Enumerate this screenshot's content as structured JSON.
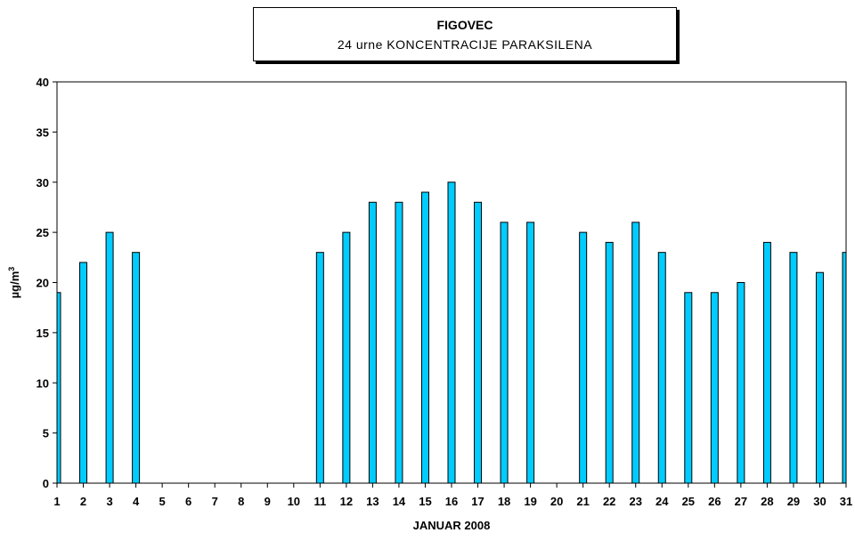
{
  "chart_data": {
    "type": "bar",
    "title": "FIGOVEC",
    "subtitle": "24 urne KONCENTRACIJE PARAKSILENA",
    "xlabel": "JANUAR  2008",
    "ylabel": "µg/m",
    "ylabel_sup": "3",
    "ylim": [
      0,
      40
    ],
    "yticks": [
      0,
      5,
      10,
      15,
      20,
      25,
      30,
      35,
      40
    ],
    "categories": [
      "1",
      "2",
      "3",
      "4",
      "5",
      "6",
      "7",
      "8",
      "9",
      "10",
      "11",
      "12",
      "13",
      "14",
      "15",
      "16",
      "17",
      "18",
      "19",
      "20",
      "21",
      "22",
      "23",
      "24",
      "25",
      "26",
      "27",
      "28",
      "29",
      "30",
      "31"
    ],
    "values": [
      19,
      22,
      25,
      23,
      null,
      null,
      null,
      null,
      null,
      null,
      23,
      25,
      28,
      28,
      29,
      30,
      28,
      26,
      26,
      null,
      25,
      24,
      26,
      23,
      19,
      19,
      20,
      24,
      23,
      21,
      23
    ],
    "bar_color": "#00ccff",
    "grid": false,
    "legend": "none"
  }
}
